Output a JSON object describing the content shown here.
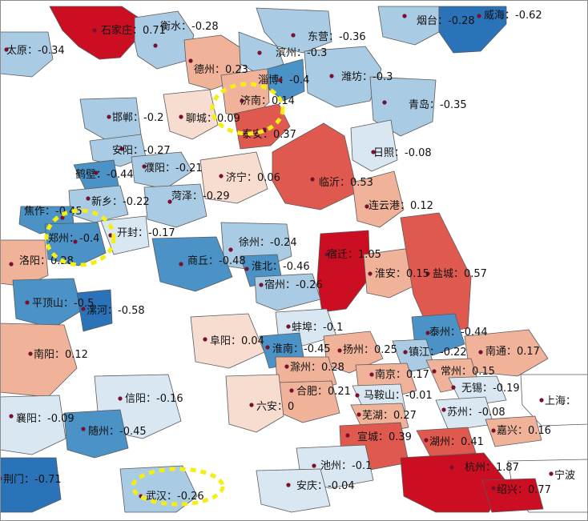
{
  "colors": {
    "strong_negative": "#2b73b8",
    "medium_negative": "#4b92c6",
    "light_negative": "#a9cbe3",
    "very_light_negative": "#d9e7f2",
    "very_light_positive": "#f7dcd0",
    "light_positive": "#f0b39a",
    "medium_positive": "#e0594f",
    "strong_positive": "#cc0e23",
    "no_data": "#ffffff"
  },
  "cities": [
    {
      "id": "shijiazhuang",
      "label": "石家庄：0.71",
      "value": 0.71
    },
    {
      "id": "taiyuan",
      "label": "太原：-0.34",
      "value": -0.34
    },
    {
      "id": "hengshui",
      "label": "衡水：-0.28",
      "value": -0.28
    },
    {
      "id": "dezhou",
      "label": "德州：0.23",
      "value": 0.23
    },
    {
      "id": "dongying",
      "label": "东营：-0.36",
      "value": -0.36
    },
    {
      "id": "binzhou",
      "label": "滨州：-0.3",
      "value": -0.3
    },
    {
      "id": "yantai",
      "label": "烟台：-0.28",
      "value": -0.28
    },
    {
      "id": "weihai",
      "label": "威海：-0.62",
      "value": -0.62
    },
    {
      "id": "zibo",
      "label": "淄博：-0.4",
      "value": -0.4
    },
    {
      "id": "weifang",
      "label": "潍坊：-0.3",
      "value": -0.3
    },
    {
      "id": "jinan",
      "label": "济南：0.14",
      "value": 0.14
    },
    {
      "id": "qingdao",
      "label": "青岛：-0.35",
      "value": -0.35
    },
    {
      "id": "handan",
      "label": "邯郸：-0.2",
      "value": -0.2
    },
    {
      "id": "liaocheng",
      "label": "聊城：0.09",
      "value": 0.09
    },
    {
      "id": "taian",
      "label": "泰安：0.37",
      "value": 0.37
    },
    {
      "id": "anyang",
      "label": "安阳：-0.27",
      "value": -0.27
    },
    {
      "id": "rizhao",
      "label": "日照：-0.08",
      "value": -0.08
    },
    {
      "id": "hebi",
      "label": "鹤壁：-0.44",
      "value": -0.44
    },
    {
      "id": "puyang",
      "label": "濮阳：-0.21",
      "value": -0.21
    },
    {
      "id": "jining",
      "label": "济宁：0.06",
      "value": 0.06
    },
    {
      "id": "linyi",
      "label": "临沂：0.53",
      "value": 0.53
    },
    {
      "id": "xinxiang",
      "label": "新乡：-0.22",
      "value": -0.22
    },
    {
      "id": "heze",
      "label": "菏泽：-0.29",
      "value": -0.29
    },
    {
      "id": "lianyungang",
      "label": "连云港：0.12",
      "value": 0.12
    },
    {
      "id": "jiaozuo",
      "label": "焦作：-0.45",
      "value": -0.45
    },
    {
      "id": "zhengzhou",
      "label": "郑州：-0.4",
      "value": -0.4
    },
    {
      "id": "kaifeng",
      "label": "开封：-0.17",
      "value": -0.17
    },
    {
      "id": "xuzhou",
      "label": "徐州：-0.24",
      "value": -0.24
    },
    {
      "id": "luoyang",
      "label": "洛阳：0.28",
      "value": 0.28
    },
    {
      "id": "shangqiu",
      "label": "商丘：-0.48",
      "value": -0.48
    },
    {
      "id": "huaibei",
      "label": "淮北：-0.46",
      "value": -0.46
    },
    {
      "id": "suqian",
      "label": "宿迁：1.05",
      "value": 1.05
    },
    {
      "id": "suzhou_ah",
      "label": "宿州：-0.26",
      "value": -0.26
    },
    {
      "id": "huaian",
      "label": "淮安：0.15",
      "value": 0.15
    },
    {
      "id": "yancheng",
      "label": "盐城：0.57",
      "value": 0.57
    },
    {
      "id": "pingdingshan",
      "label": "平顶山：-0.5",
      "value": -0.5
    },
    {
      "id": "luohe",
      "label": "漯河：-0.58",
      "value": -0.58
    },
    {
      "id": "bengbu",
      "label": "蚌埠：-0.1",
      "value": -0.1
    },
    {
      "id": "taizhou",
      "label": "泰州：-0.44",
      "value": -0.44
    },
    {
      "id": "fuyang",
      "label": "阜阳：0.04",
      "value": 0.04
    },
    {
      "id": "huainan",
      "label": "淮南：-0.45",
      "value": -0.45
    },
    {
      "id": "yangzhou",
      "label": "扬州：0.25",
      "value": 0.25
    },
    {
      "id": "zhenjiang",
      "label": "镇江：-0.22",
      "value": -0.22
    },
    {
      "id": "nantong",
      "label": "南通：0.17",
      "value": 0.17
    },
    {
      "id": "nanyang",
      "label": "南阳：0.12",
      "value": 0.12
    },
    {
      "id": "chuzhou",
      "label": "滁州：0.28",
      "value": 0.28
    },
    {
      "id": "nanjing",
      "label": "南京：0.17",
      "value": 0.17
    },
    {
      "id": "changzhou",
      "label": "常州：0.15",
      "value": 0.15
    },
    {
      "id": "hefei",
      "label": "合肥：0.21",
      "value": 0.21
    },
    {
      "id": "maanshan",
      "label": "马鞍山：-0.01",
      "value": -0.01
    },
    {
      "id": "wuxi",
      "label": "无锡：-0.19",
      "value": -0.19
    },
    {
      "id": "xinyang",
      "label": "信阳：-0.16",
      "value": -0.16
    },
    {
      "id": "shanghai",
      "label": "上海：",
      "value": null
    },
    {
      "id": "luan",
      "label": "六安：0",
      "value": 0
    },
    {
      "id": "suzhou_js",
      "label": "苏州：-0.08",
      "value": -0.08
    },
    {
      "id": "xiangyang",
      "label": "襄阳：-0.09",
      "value": -0.09
    },
    {
      "id": "wuhu",
      "label": "芜湖：0.27",
      "value": 0.27
    },
    {
      "id": "jiaxing",
      "label": "嘉兴：0.16",
      "value": 0.16
    },
    {
      "id": "suizhou",
      "label": "随州：-0.45",
      "value": -0.45
    },
    {
      "id": "xuancheng",
      "label": "宣城：0.39",
      "value": 0.39
    },
    {
      "id": "huzhou",
      "label": "湖州：0.41",
      "value": 0.41
    },
    {
      "id": "jingmen",
      "label": "荆门：-0.71",
      "value": -0.71
    },
    {
      "id": "chizhou",
      "label": "池州：-0.1",
      "value": -0.1
    },
    {
      "id": "hangzhou",
      "label": "杭州：1.87",
      "value": 1.87
    },
    {
      "id": "ningbo",
      "label": "宁波",
      "value": null
    },
    {
      "id": "wuhan",
      "label": "武汉：-0.26",
      "value": -0.26
    },
    {
      "id": "anqing",
      "label": "安庆：-0.04",
      "value": -0.04
    },
    {
      "id": "shaoxing",
      "label": "绍兴：0.77",
      "value": 0.77
    }
  ],
  "highlighted_cities": [
    "济南",
    "郑州",
    "武汉"
  ]
}
